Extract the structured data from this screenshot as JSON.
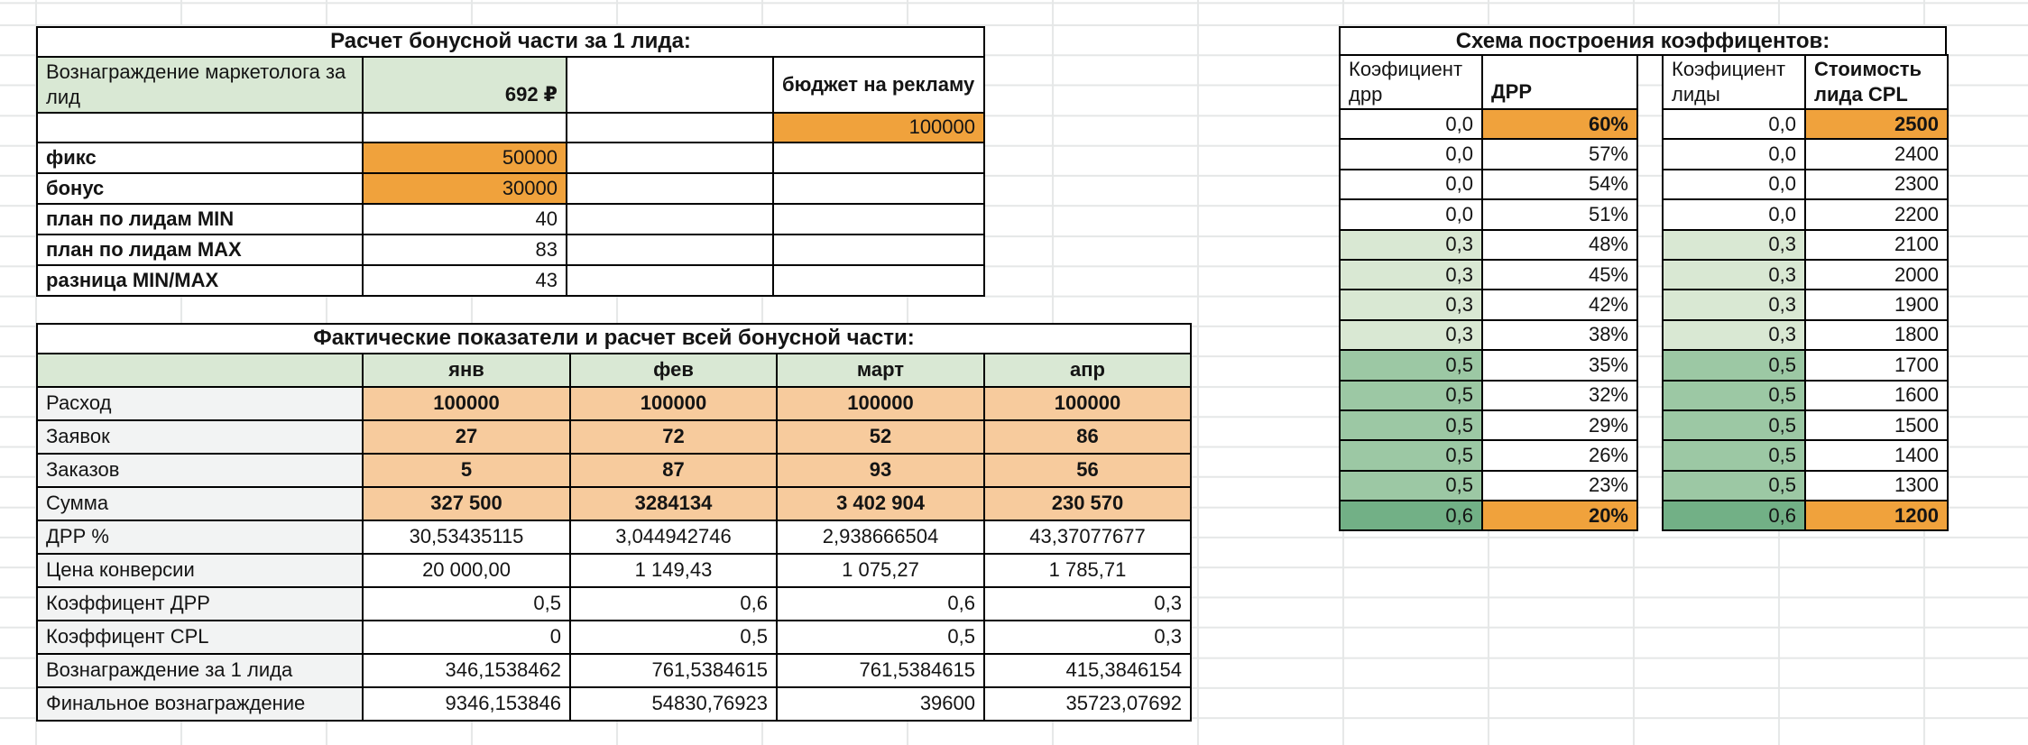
{
  "colors": {
    "accent_orange": "#f0a23c",
    "peach": "#f7cb9d",
    "header_green": "#d9e8d4",
    "coef_green_light": "#d9e8d3",
    "coef_green_mid": "#9cc8a4",
    "coef_green_dark": "#72b086",
    "label_gray": "#f2f3f3",
    "grid_line": "#e5e7e7",
    "cell_border": "#000000"
  },
  "bonus_table": {
    "title": "Расчет бонусной части за 1 лида:",
    "reward_label": "Вознаграждение маркетолога за лид",
    "reward_value": "692 ₽",
    "budget_label": "бюджет на рекламу",
    "budget_value": "100000",
    "rows": [
      {
        "label": "фикс",
        "value": "50000",
        "hl": "y"
      },
      {
        "label": "бонус",
        "value": "30000",
        "hl": "y"
      },
      {
        "label": "план по лидам MIN",
        "value": "40",
        "hl": "n"
      },
      {
        "label": "план по лидам MAX",
        "value": "83",
        "hl": "n"
      },
      {
        "label": "разница MIN/MAX",
        "value": "43",
        "hl": "n"
      }
    ]
  },
  "actuals_table": {
    "title": "Фактические показатели и расчет всей бонусной части:",
    "months": [
      "янв",
      "фев",
      "март",
      "апр"
    ],
    "rows": [
      {
        "label": "Расход",
        "style": "peach",
        "values": [
          "100000",
          "100000",
          "100000",
          "100000"
        ]
      },
      {
        "label": "Заявок",
        "style": "peach",
        "values": [
          "27",
          "72",
          "52",
          "86"
        ]
      },
      {
        "label": "Заказов",
        "style": "peach",
        "values": [
          "5",
          "87",
          "93",
          "56"
        ]
      },
      {
        "label": "Сумма",
        "style": "peach",
        "values": [
          "327 500",
          "3284134",
          "3 402 904",
          "230 570"
        ]
      },
      {
        "label": "ДРР %",
        "style": "center",
        "values": [
          "30,53435115",
          "3,044942746",
          "2,938666504",
          "43,37077677"
        ]
      },
      {
        "label": "Цена конверсии",
        "style": "center",
        "values": [
          "20 000,00",
          "1 149,43",
          "1 075,27",
          "1 785,71"
        ]
      },
      {
        "label": "Коэффицент ДРР",
        "style": "right",
        "values": [
          "0,5",
          "0,6",
          "0,6",
          "0,3"
        ]
      },
      {
        "label": "Коэффицент CPL",
        "style": "right",
        "values": [
          "0",
          "0,5",
          "0,5",
          "0,3"
        ]
      },
      {
        "label": "Вознаграждение за 1 лида",
        "style": "right",
        "values": [
          "346,1538462",
          "761,5384615",
          "761,5384615",
          "415,3846154"
        ]
      },
      {
        "label": "Финальное вознаграждение",
        "style": "right",
        "values": [
          "9346,153846",
          "54830,76923",
          "39600",
          "35723,07692"
        ]
      }
    ]
  },
  "coef_table": {
    "title": "Схема построения коэффицентов:",
    "drr_block": {
      "col1_header": "Коэфициент дрр",
      "col2_header": "ДРР"
    },
    "leads_block": {
      "col1_header": "Коэфициент лиды",
      "col2_header": "Стоимость лида CPL"
    },
    "rows": [
      {
        "drr_coef": "0,0",
        "drr": "60%",
        "leads_coef": "0,0",
        "cpl": "2500",
        "tone": "none",
        "hl": "y"
      },
      {
        "drr_coef": "0,0",
        "drr": "57%",
        "leads_coef": "0,0",
        "cpl": "2400",
        "tone": "none",
        "hl": "n"
      },
      {
        "drr_coef": "0,0",
        "drr": "54%",
        "leads_coef": "0,0",
        "cpl": "2300",
        "tone": "none",
        "hl": "n"
      },
      {
        "drr_coef": "0,0",
        "drr": "51%",
        "leads_coef": "0,0",
        "cpl": "2200",
        "tone": "none",
        "hl": "n"
      },
      {
        "drr_coef": "0,3",
        "drr": "48%",
        "leads_coef": "0,3",
        "cpl": "2100",
        "tone": "light",
        "hl": "n"
      },
      {
        "drr_coef": "0,3",
        "drr": "45%",
        "leads_coef": "0,3",
        "cpl": "2000",
        "tone": "light",
        "hl": "n"
      },
      {
        "drr_coef": "0,3",
        "drr": "42%",
        "leads_coef": "0,3",
        "cpl": "1900",
        "tone": "light",
        "hl": "n"
      },
      {
        "drr_coef": "0,3",
        "drr": "38%",
        "leads_coef": "0,3",
        "cpl": "1800",
        "tone": "light",
        "hl": "n"
      },
      {
        "drr_coef": "0,5",
        "drr": "35%",
        "leads_coef": "0,5",
        "cpl": "1700",
        "tone": "mid",
        "hl": "n"
      },
      {
        "drr_coef": "0,5",
        "drr": "32%",
        "leads_coef": "0,5",
        "cpl": "1600",
        "tone": "mid",
        "hl": "n"
      },
      {
        "drr_coef": "0,5",
        "drr": "29%",
        "leads_coef": "0,5",
        "cpl": "1500",
        "tone": "mid",
        "hl": "n"
      },
      {
        "drr_coef": "0,5",
        "drr": "26%",
        "leads_coef": "0,5",
        "cpl": "1400",
        "tone": "mid",
        "hl": "n"
      },
      {
        "drr_coef": "0,5",
        "drr": "23%",
        "leads_coef": "0,5",
        "cpl": "1300",
        "tone": "mid",
        "hl": "n"
      },
      {
        "drr_coef": "0,6",
        "drr": "20%",
        "leads_coef": "0,6",
        "cpl": "1200",
        "tone": "dark",
        "hl": "y"
      }
    ]
  }
}
